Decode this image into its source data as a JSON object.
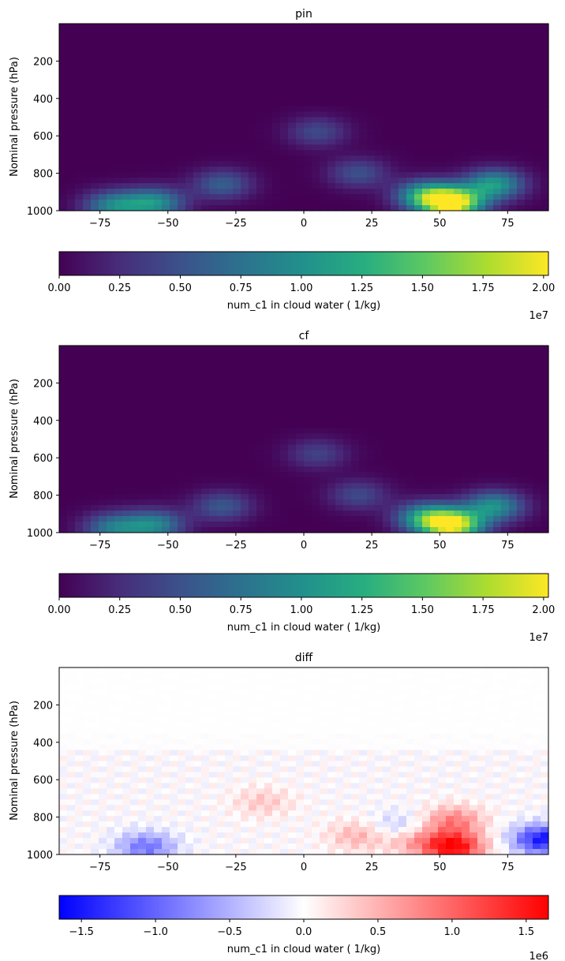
{
  "chart_data": [
    {
      "type": "heatmap",
      "title": "pin",
      "ylabel": "Nominal pressure (hPa)",
      "xlim": [
        -90,
        90
      ],
      "ylim": [
        1000,
        0
      ],
      "xticks": [
        -75,
        -50,
        -25,
        0,
        25,
        50,
        75
      ],
      "yticks": [
        200,
        400,
        600,
        800,
        1000
      ],
      "colormap": "viridis",
      "colorbar": {
        "label": "num_c1 in cloud water ( 1/kg)",
        "range": [
          0,
          2.02
        ],
        "ticks": [
          "0.00",
          "0.25",
          "0.50",
          "0.75",
          "1.00",
          "1.25",
          "1.50",
          "1.75",
          "2.00"
        ],
        "multiplier": "1e7"
      },
      "features": [
        {
          "lat": 55,
          "p": 960,
          "value": 2.02
        },
        {
          "lat": 45,
          "p": 920,
          "value": 1.2
        },
        {
          "lat": 70,
          "p": 860,
          "value": 1.1
        },
        {
          "lat": -55,
          "p": 960,
          "value": 1.0
        },
        {
          "lat": -70,
          "p": 975,
          "value": 0.9
        },
        {
          "lat": -30,
          "p": 860,
          "value": 0.6
        },
        {
          "lat": 5,
          "p": 580,
          "value": 0.45
        },
        {
          "lat": 20,
          "p": 800,
          "value": 0.5
        }
      ]
    },
    {
      "type": "heatmap",
      "title": "cf",
      "ylabel": "Nominal pressure (hPa)",
      "xlim": [
        -90,
        90
      ],
      "ylim": [
        1000,
        0
      ],
      "xticks": [
        -75,
        -50,
        -25,
        0,
        25,
        50,
        75
      ],
      "yticks": [
        200,
        400,
        600,
        800,
        1000
      ],
      "colormap": "viridis",
      "colorbar": {
        "label": "num_c1 in cloud water ( 1/kg)",
        "range": [
          0,
          2.02
        ],
        "ticks": [
          "0.00",
          "0.25",
          "0.50",
          "0.75",
          "1.00",
          "1.25",
          "1.50",
          "1.75",
          "2.00"
        ],
        "multiplier": "1e7"
      },
      "features": [
        {
          "lat": 55,
          "p": 960,
          "value": 1.9
        },
        {
          "lat": 45,
          "p": 920,
          "value": 1.1
        },
        {
          "lat": 70,
          "p": 860,
          "value": 1.0
        },
        {
          "lat": -55,
          "p": 960,
          "value": 0.9
        },
        {
          "lat": -70,
          "p": 975,
          "value": 0.8
        },
        {
          "lat": -30,
          "p": 860,
          "value": 0.55
        },
        {
          "lat": 5,
          "p": 580,
          "value": 0.4
        },
        {
          "lat": 20,
          "p": 800,
          "value": 0.45
        }
      ]
    },
    {
      "type": "heatmap",
      "title": "diff",
      "ylabel": "Nominal pressure (hPa)",
      "xlim": [
        -90,
        90
      ],
      "ylim": [
        1000,
        0
      ],
      "xticks": [
        -75,
        -50,
        -25,
        0,
        25,
        50,
        75
      ],
      "yticks": [
        200,
        400,
        600,
        800,
        1000
      ],
      "colormap": "bwr",
      "colorbar": {
        "label": "num_c1 in cloud water ( 1/kg)",
        "range": [
          -1.65,
          1.65
        ],
        "ticks": [
          "−1.5",
          "−1.0",
          "−0.5",
          "0.0",
          "0.5",
          "1.0",
          "1.5"
        ],
        "tick_values": [
          -1.5,
          -1.0,
          -0.5,
          0.0,
          0.5,
          1.0,
          1.5
        ],
        "multiplier": "1e6"
      },
      "features": [
        {
          "lat": 55,
          "p": 960,
          "value": 1.65
        },
        {
          "lat": 55,
          "p": 820,
          "value": 0.8
        },
        {
          "lat": 88,
          "p": 920,
          "value": -1.5
        },
        {
          "lat": -58,
          "p": 960,
          "value": -0.9
        },
        {
          "lat": 40,
          "p": 920,
          "value": 0.6
        },
        {
          "lat": -15,
          "p": 720,
          "value": 0.35
        },
        {
          "lat": 35,
          "p": 860,
          "value": -0.5
        },
        {
          "lat": 20,
          "p": 900,
          "value": 0.5
        }
      ]
    }
  ]
}
